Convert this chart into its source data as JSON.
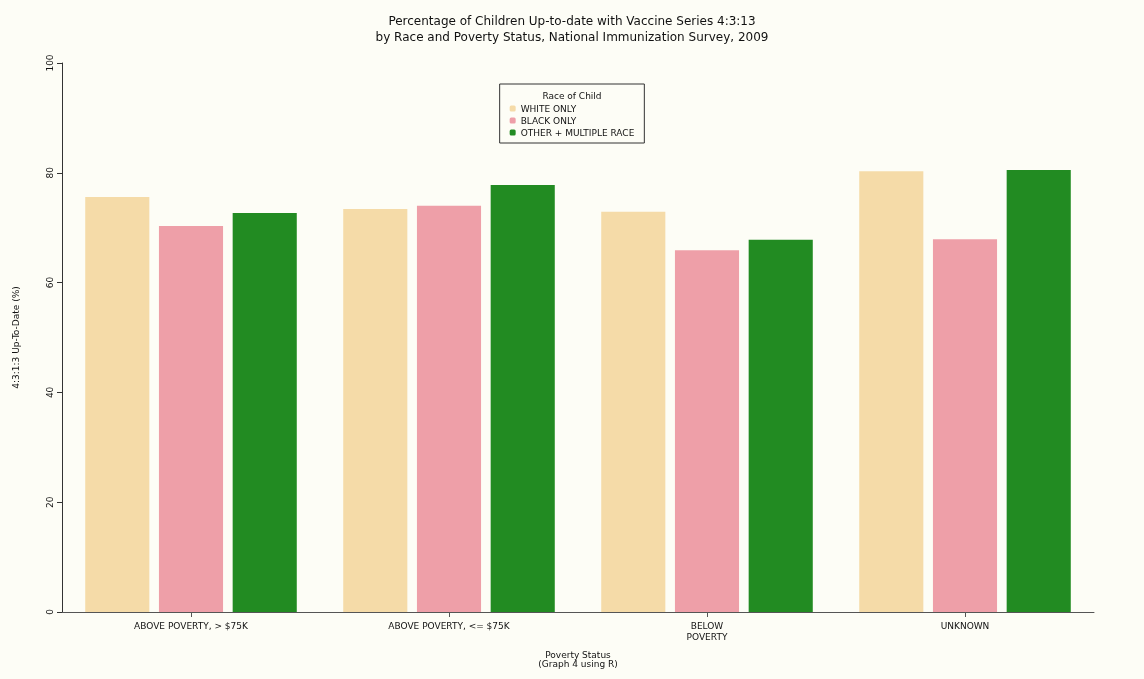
{
  "chart_data": {
    "type": "bar",
    "title": "Percentage of Children Up-to-date with Vaccine Series 4:3:13\nby Race and Poverty Status, National Immunization Survey, 2009",
    "xlabel": "Poverty Status\n(Graph 4 using R)",
    "ylabel": "4:3:1:3 Up-To-Date (%)",
    "legend_title": "Race of Child",
    "categories": [
      "ABOVE POVERTY, > $75K",
      "ABOVE POVERTY, <= $75K",
      "BELOW\nPOVERTY",
      "UNKNOWN"
    ],
    "series": [
      {
        "name": "WHITE ONLY",
        "color": "#f5dba8",
        "values": [
          75.6,
          73.4,
          72.9,
          80.3
        ]
      },
      {
        "name": "BLACK ONLY",
        "color": "#ee9fa8",
        "values": [
          70.3,
          74.0,
          65.9,
          67.9
        ]
      },
      {
        "name": "OTHER + MULTIPLE RACE",
        "color": "#228b22",
        "values": [
          72.7,
          77.8,
          67.8,
          80.5
        ]
      }
    ],
    "ylim": [
      0,
      100
    ],
    "yticks": [
      0,
      20,
      40,
      60,
      80,
      100
    ],
    "grid": false,
    "legend": "top"
  }
}
